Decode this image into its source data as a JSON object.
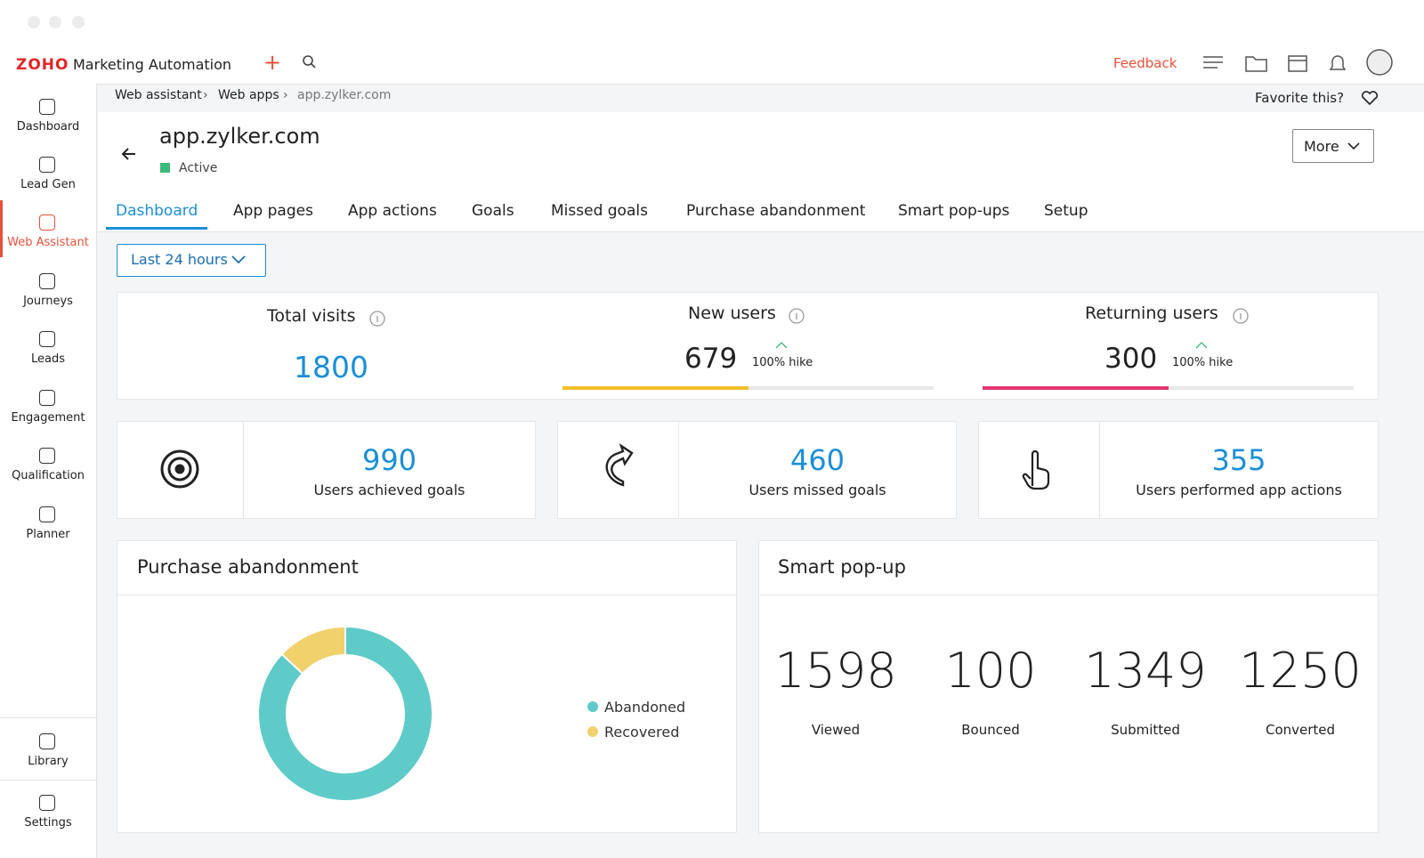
{
  "header": {
    "logo": "ZOHO",
    "brand": "Marketing Automation",
    "feedback": "Feedback"
  },
  "sidebar": {
    "items": [
      "Dashboard",
      "Lead Gen",
      "Web Assistant",
      "Journeys",
      "Leads",
      "Engagement",
      "Qualification",
      "Planner"
    ],
    "active": 2,
    "bottom": [
      "Library",
      "Settings"
    ]
  },
  "breadcrumb": [
    "Web assistant",
    "Web apps",
    "app.zylker.com"
  ],
  "favorite": "Favorite this?",
  "page": {
    "title": "app.zylker.com",
    "status": "Active",
    "more": "More"
  },
  "tabs": {
    "items": [
      "Dashboard",
      "App pages",
      "App actions",
      "Goals",
      "Missed goals",
      "Purchase abandonment",
      "Smart pop-ups",
      "Setup"
    ],
    "active": 0
  },
  "filter": "Last 24 hours",
  "stats": [
    {
      "label": "Total visits",
      "value": "1800"
    },
    {
      "label": "New users",
      "value": "679",
      "change": "100% hike",
      "bar_percent": 50,
      "color": "#f2c02b"
    },
    {
      "label": "Returning users",
      "value": "300",
      "change": "100% hike",
      "bar_percent": 50,
      "color": "#e3356f"
    }
  ],
  "cards": [
    {
      "value": "990",
      "label": "Users achieved goals"
    },
    {
      "value": "460",
      "label": "Users missed goals"
    },
    {
      "value": "355",
      "label": "Users performed app actions"
    }
  ],
  "purchase_abandonment": {
    "title": "Purchase abandonment",
    "type": "donut",
    "series": [
      {
        "name": "Abandoned",
        "color": "#5ecbc8",
        "value": 87
      },
      {
        "name": "Recovered",
        "color": "#f1d16b",
        "value": 13
      }
    ]
  },
  "smart_popup": {
    "title": "Smart pop-up",
    "stats": [
      {
        "value": "1598",
        "label": "Viewed"
      },
      {
        "value": "100",
        "label": "Bounced"
      },
      {
        "value": "1349",
        "label": "Submitted"
      },
      {
        "value": "1250",
        "label": "Converted"
      }
    ]
  }
}
